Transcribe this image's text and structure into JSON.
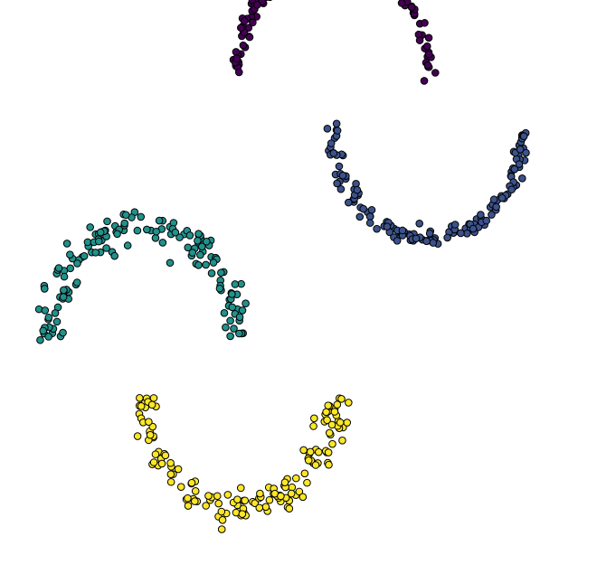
{
  "chart_data": {
    "type": "scatter",
    "title": "",
    "xlabel": "",
    "ylabel": "",
    "axes_visible": false,
    "grid": false,
    "legend": "none",
    "marker": {
      "shape": "circle",
      "edge_color": "#000000"
    },
    "xlim": [
      -1.3,
      4.7
    ],
    "ylim": [
      -2.55,
      2.6
    ],
    "series": [
      {
        "color": "#440154",
        "shape": "moon-upper",
        "center": [
          2.0,
          2.0
        ],
        "radius": 1.0,
        "angle_range": [
          0,
          180
        ],
        "noise": 0.035,
        "count": 150
      },
      {
        "color": "#3b528b",
        "shape": "moon-lower",
        "center": [
          3.0,
          1.5
        ],
        "radius": 1.0,
        "angle_range": [
          180,
          360
        ],
        "noise": 0.035,
        "count": 150
      },
      {
        "color": "#21918c",
        "shape": "moon-upper",
        "center": [
          0.0,
          -0.4
        ],
        "radius": 1.0,
        "angle_range": [
          0,
          180
        ],
        "noise": 0.08,
        "count": 150
      },
      {
        "color": "#fde725",
        "shape": "moon-lower",
        "center": [
          1.0,
          -0.9
        ],
        "radius": 1.0,
        "angle_range": [
          180,
          360
        ],
        "noise": 0.08,
        "count": 150
      }
    ]
  }
}
